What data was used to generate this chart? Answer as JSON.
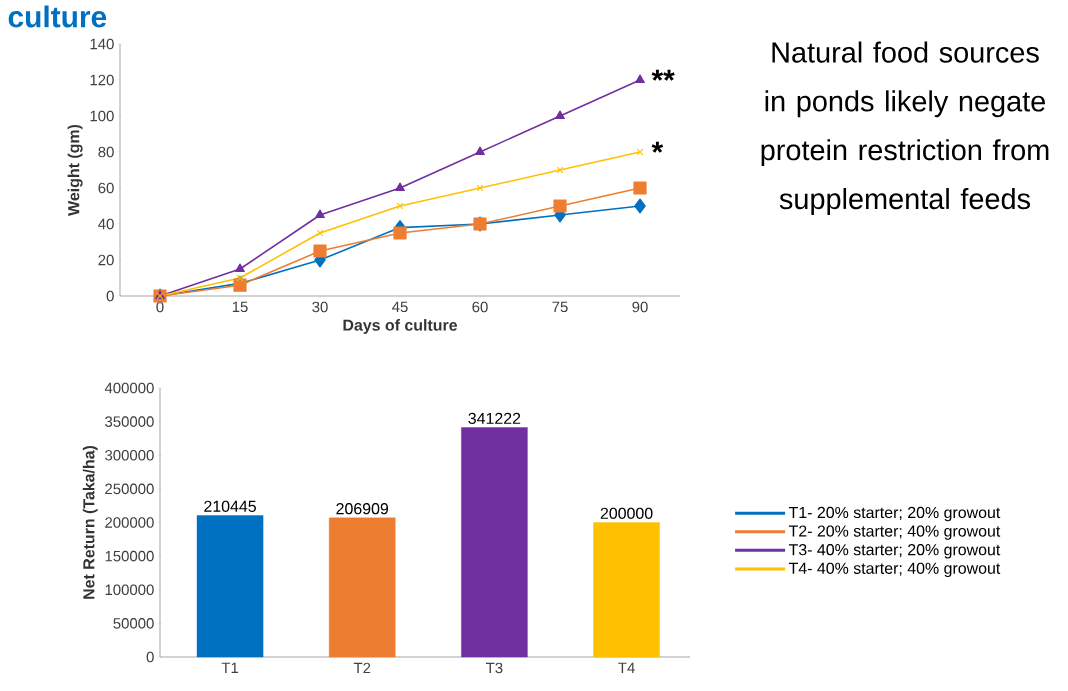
{
  "chart_data": [
    {
      "type": "line",
      "title": "culture",
      "xlabel": "Days of culture",
      "ylabel": "Weight (gm)",
      "x": [
        0,
        15,
        30,
        45,
        60,
        75,
        90
      ],
      "series": [
        {
          "name": "T1- 20% starter; 20% growout",
          "color": "#0070c0",
          "marker": "diamond",
          "values": [
            0,
            7,
            20,
            38,
            40,
            45,
            50
          ]
        },
        {
          "name": "T2- 20% starter; 40% growout",
          "color": "#ed7d31",
          "marker": "square",
          "values": [
            0,
            6,
            25,
            35,
            40,
            50,
            60
          ]
        },
        {
          "name": "T3- 40% starter; 20% growout",
          "color": "#7030a0",
          "marker": "triangle",
          "values": [
            0,
            15,
            45,
            60,
            80,
            100,
            120
          ]
        },
        {
          "name": "T4- 40% starter; 40% growout",
          "color": "#ffc000",
          "marker": "cross",
          "values": [
            0,
            10,
            35,
            50,
            60,
            70,
            80
          ]
        }
      ],
      "xlim": [
        -7.5,
        97.5
      ],
      "ylim": [
        0,
        140
      ],
      "xticks": [
        0,
        15,
        30,
        45,
        60,
        75,
        90
      ],
      "yticks": [
        0,
        20,
        40,
        60,
        80,
        100,
        120,
        140
      ],
      "legend": "right",
      "annotations": [
        "Natural food sources in ponds likely negate protein restriction from supplemental feeds",
        {
          "text": "**",
          "x": 90,
          "y": 120
        },
        {
          "text": "*",
          "x": 90,
          "y": 80
        }
      ]
    },
    {
      "type": "bar",
      "ylabel": "Net Return (Taka/ha)",
      "categories": [
        "T1",
        "T2",
        "T3",
        "T4"
      ],
      "values": [
        210445,
        206909,
        341222,
        200000
      ],
      "colors": [
        "#0070c0",
        "#ed7d31",
        "#7030a0",
        "#ffc000"
      ],
      "ylim": [
        0,
        400000
      ],
      "yticks": [
        0,
        50000,
        100000,
        150000,
        200000,
        250000,
        300000,
        350000,
        400000
      ],
      "data_labels": true
    }
  ]
}
